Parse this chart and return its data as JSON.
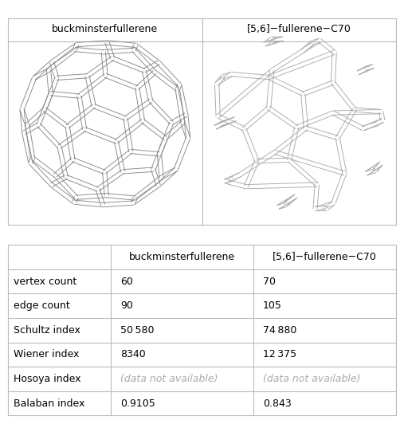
{
  "col_headers": [
    "",
    "buckminsterfullerene",
    "[5,6]−fullerene−C70"
  ],
  "image_col_headers": [
    "buckminsterfullerene",
    "[5,6]−fullerene−C70"
  ],
  "rows": [
    {
      "label": "vertex count",
      "v1": "60",
      "v2": "70",
      "style1": "normal",
      "style2": "normal"
    },
    {
      "label": "edge count",
      "v1": "90",
      "v2": "105",
      "style1": "normal",
      "style2": "normal"
    },
    {
      "label": "Schultz index",
      "v1": "50 580",
      "v2": "74 880",
      "style1": "normal",
      "style2": "normal"
    },
    {
      "label": "Wiener index",
      "v1": "8340",
      "v2": "12 375",
      "style1": "normal",
      "style2": "normal"
    },
    {
      "label": "Hosoya index",
      "v1": "(data not available)",
      "v2": "(data not available)",
      "style1": "gray",
      "style2": "gray"
    },
    {
      "label": "Balaban index",
      "v1": "0.9105",
      "v2": "0.843",
      "style1": "normal",
      "style2": "normal"
    }
  ],
  "border_color": "#bbbbbb",
  "text_color": "#000000",
  "gray_color": "#aaaaaa",
  "edge_color_c60": "#888888",
  "edge_color_c70": "#aaaaaa",
  "font_size_header": 9.0,
  "font_size_body": 9.0,
  "fig_width": 5.07,
  "fig_height": 5.32,
  "dpi": 100
}
